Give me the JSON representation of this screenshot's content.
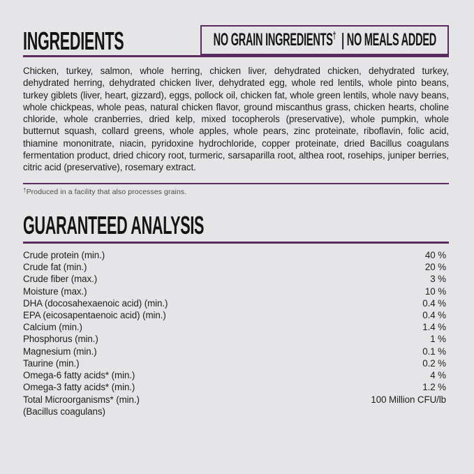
{
  "label": {
    "background": "#e5e5e7",
    "accent": "#5a2b5f",
    "text_color": "#1e1e1e"
  },
  "ingredients": {
    "title": "INGREDIENTS",
    "badge": {
      "first": "NO GRAIN INGREDIENTS",
      "dagger": "†",
      "second": "| NO MEALS ADDED"
    },
    "text": "Chicken, turkey, salmon, whole herring, chicken liver, dehydrated chicken, dehydrated turkey, dehydrated herring, dehydrated chicken liver, dehydrated egg, whole red lentils, whole pinto beans, turkey giblets (liver, heart, gizzard), eggs, pollock oil, chicken fat, whole green lentils, whole navy beans, whole chickpeas, whole peas, natural chicken flavor, ground miscanthus grass, chicken hearts, choline chloride, whole cranberries, dried kelp, mixed tocopherols (preservative), whole pumpkin, whole butternut squash, collard greens, whole apples, whole pears, zinc proteinate, riboflavin, folic acid, thiamine mononitrate, niacin, pyridoxine hydrochloride, copper proteinate, dried Bacillus coagulans fermentation product, dried chicory root, turmeric, sarsaparilla root, althea root, rosehips, juniper berries, citric acid (preservative), rosemary extract.",
    "footnote": {
      "dagger": "†",
      "text": "Produced in a facility that also processes grains."
    }
  },
  "guaranteed_analysis": {
    "title": "GUARANTEED ANALYSIS",
    "rows": [
      {
        "label": "Crude protein (min.)",
        "value": "40 %"
      },
      {
        "label": "Crude fat (min.)",
        "value": "20 %"
      },
      {
        "label": "Crude fiber (max.)",
        "value": "3 %"
      },
      {
        "label": "Moisture (max.)",
        "value": "10 %"
      },
      {
        "label": "DHA (docosahexaenoic acid) (min.)",
        "value": "0.4 %"
      },
      {
        "label": "EPA (eicosapentaenoic acid) (min.)",
        "value": "0.4 %"
      },
      {
        "label": "Calcium (min.)",
        "value": "1.4 %"
      },
      {
        "label": "Phosphorus (min.)",
        "value": "1 %"
      },
      {
        "label": "Magnesium (min.)",
        "value": "0.1 %"
      },
      {
        "label": "Taurine (min.)",
        "value": "0.2 %"
      },
      {
        "label": "Omega-6 fatty acids* (min.)",
        "value": "4 %"
      },
      {
        "label": "Omega-3 fatty acids* (min.)",
        "value": "1.2 %"
      },
      {
        "label": "Total Microorganisms* (min.)",
        "value": "100 Million CFU/lb"
      },
      {
        "label": "(Bacillus coagulans)",
        "value": ""
      }
    ]
  }
}
